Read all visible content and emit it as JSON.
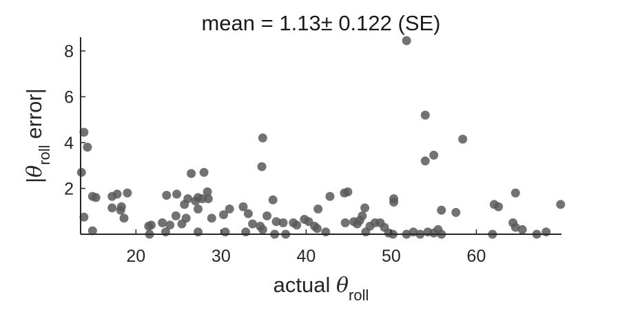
{
  "chart_data": {
    "type": "scatter",
    "title": "mean = 1.13± 0.122 (SE)",
    "xlabel": {
      "prefix": "actual ",
      "symbol": "θ",
      "subscript": "roll"
    },
    "ylabel": {
      "prefix": "|",
      "symbol": "θ",
      "subscript": "roll",
      "suffix": " error|"
    },
    "xlim": [
      13.5,
      70
    ],
    "ylim": [
      0,
      8.6
    ],
    "x_ticks": [
      20,
      30,
      40,
      50,
      60
    ],
    "y_ticks": [
      2,
      4,
      6,
      8
    ],
    "grid": false,
    "marker_color": "#595959",
    "points": [
      [
        13.6,
        2.7
      ],
      [
        13.9,
        4.45
      ],
      [
        14.3,
        3.8
      ],
      [
        13.9,
        0.75
      ],
      [
        14.9,
        1.65
      ],
      [
        15.3,
        1.6
      ],
      [
        14.9,
        0.15
      ],
      [
        17.2,
        1.65
      ],
      [
        17.8,
        1.75
      ],
      [
        17.2,
        1.15
      ],
      [
        18.3,
        1.2
      ],
      [
        18.2,
        1.05
      ],
      [
        18.6,
        0.7
      ],
      [
        19.0,
        1.8
      ],
      [
        21.5,
        0.35
      ],
      [
        21.8,
        0.4
      ],
      [
        21.6,
        0.0
      ],
      [
        23.1,
        0.5
      ],
      [
        23.6,
        1.7
      ],
      [
        23.5,
        0.1
      ],
      [
        24.0,
        0.4
      ],
      [
        24.7,
        0.8
      ],
      [
        24.8,
        1.75
      ],
      [
        25.4,
        0.45
      ],
      [
        25.7,
        1.3
      ],
      [
        25.9,
        0.7
      ],
      [
        26.1,
        1.55
      ],
      [
        26.5,
        2.65
      ],
      [
        27.0,
        1.45
      ],
      [
        27.3,
        1.6
      ],
      [
        27.3,
        1.1
      ],
      [
        27.3,
        0.1
      ],
      [
        27.8,
        1.55
      ],
      [
        28.0,
        2.7
      ],
      [
        28.4,
        1.85
      ],
      [
        28.5,
        1.55
      ],
      [
        28.9,
        0.7
      ],
      [
        30.3,
        0.85
      ],
      [
        30.5,
        0.1
      ],
      [
        31.0,
        1.1
      ],
      [
        32.6,
        1.2
      ],
      [
        32.9,
        0.1
      ],
      [
        33.2,
        0.9
      ],
      [
        33.7,
        0.45
      ],
      [
        34.6,
        0.35
      ],
      [
        34.9,
        0.2
      ],
      [
        34.9,
        4.2
      ],
      [
        34.8,
        2.95
      ],
      [
        35.4,
        0.8
      ],
      [
        36.1,
        1.5
      ],
      [
        36.5,
        0.55
      ],
      [
        36.3,
        0.0
      ],
      [
        37.3,
        0.5
      ],
      [
        37.6,
        0.0
      ],
      [
        38.5,
        0.5
      ],
      [
        38.9,
        0.4
      ],
      [
        39.8,
        0.65
      ],
      [
        40.3,
        0.55
      ],
      [
        41.0,
        0.35
      ],
      [
        41.4,
        1.1
      ],
      [
        41.3,
        0.25
      ],
      [
        42.3,
        0.1
      ],
      [
        42.8,
        1.65
      ],
      [
        44.5,
        1.8
      ],
      [
        44.9,
        1.85
      ],
      [
        44.6,
        0.5
      ],
      [
        45.6,
        0.55
      ],
      [
        46.0,
        0.45
      ],
      [
        46.3,
        0.6
      ],
      [
        46.6,
        0.8
      ],
      [
        46.9,
        1.15
      ],
      [
        47.0,
        0.1
      ],
      [
        47.5,
        0.35
      ],
      [
        48.1,
        0.5
      ],
      [
        48.7,
        0.5
      ],
      [
        49.2,
        0.3
      ],
      [
        49.7,
        0.05
      ],
      [
        50.2,
        0.0
      ],
      [
        50.3,
        1.4
      ],
      [
        50.3,
        1.55
      ],
      [
        51.8,
        8.45
      ],
      [
        51.8,
        0.0
      ],
      [
        52.6,
        0.1
      ],
      [
        53.4,
        0.0
      ],
      [
        54.0,
        5.2
      ],
      [
        54.0,
        3.2
      ],
      [
        54.3,
        0.1
      ],
      [
        55.0,
        3.45
      ],
      [
        55.0,
        0.05
      ],
      [
        55.5,
        0.2
      ],
      [
        55.9,
        1.05
      ],
      [
        55.9,
        0.0
      ],
      [
        57.6,
        0.95
      ],
      [
        58.4,
        4.15
      ],
      [
        61.9,
        0.0
      ],
      [
        62.1,
        1.3
      ],
      [
        62.6,
        1.2
      ],
      [
        64.3,
        0.5
      ],
      [
        64.6,
        1.8
      ],
      [
        64.6,
        0.3
      ],
      [
        65.4,
        0.2
      ],
      [
        67.1,
        0.0
      ],
      [
        68.2,
        0.1
      ],
      [
        69.9,
        1.3
      ]
    ]
  }
}
